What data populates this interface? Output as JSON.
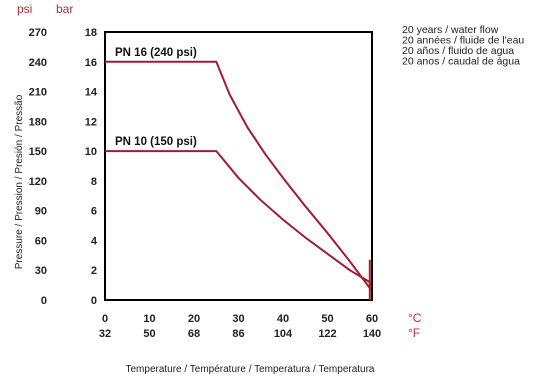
{
  "chart_data": {
    "type": "line",
    "units": {
      "y_primary": "psi",
      "y_secondary": "bar",
      "x_primary": "°C",
      "x_secondary": "°F"
    },
    "ylabel": "Pressure / Pression / Presión / Pressão",
    "xlabel": "Temperature / Température / Temperatura / Temperatura",
    "notes": [
      "20 years / water flow",
      "20 années / fluide de l'eau",
      "20 años / fluido de agua",
      "20 anos / caudal de água"
    ],
    "xlim": [
      0,
      60
    ],
    "ylim": [
      0,
      18
    ],
    "x_ticks": [
      {
        "c": 0,
        "c_label": "0",
        "f_label": "32"
      },
      {
        "c": 10,
        "c_label": "10",
        "f_label": "50"
      },
      {
        "c": 20,
        "c_label": "20",
        "f_label": "68"
      },
      {
        "c": 30,
        "c_label": "30",
        "f_label": "86"
      },
      {
        "c": 40,
        "c_label": "40",
        "f_label": "104"
      },
      {
        "c": 50,
        "c_label": "50",
        "f_label": "122"
      },
      {
        "c": 60,
        "c_label": "60",
        "f_label": "140"
      }
    ],
    "y_ticks": [
      {
        "bar": 0,
        "bar_label": "0",
        "psi_label": "0"
      },
      {
        "bar": 2,
        "bar_label": "2",
        "psi_label": "30"
      },
      {
        "bar": 4,
        "bar_label": "4",
        "psi_label": "60"
      },
      {
        "bar": 6,
        "bar_label": "6",
        "psi_label": "90"
      },
      {
        "bar": 8,
        "bar_label": "8",
        "psi_label": "120"
      },
      {
        "bar": 10,
        "bar_label": "10",
        "psi_label": "150"
      },
      {
        "bar": 12,
        "bar_label": "12",
        "psi_label": "180"
      },
      {
        "bar": 14,
        "bar_label": "14",
        "psi_label": "210"
      },
      {
        "bar": 16,
        "bar_label": "16",
        "psi_label": "240"
      },
      {
        "bar": 18,
        "bar_label": "18",
        "psi_label": "270"
      }
    ],
    "series": [
      {
        "name": "PN 16 (240 psi)",
        "color": "#a01c35",
        "points": [
          [
            0,
            16
          ],
          [
            25,
            16
          ],
          [
            28,
            13.8
          ],
          [
            32,
            11.6
          ],
          [
            36,
            9.8
          ],
          [
            40,
            8.2
          ],
          [
            45,
            6.3
          ],
          [
            50,
            4.5
          ],
          [
            55,
            2.6
          ],
          [
            59.5,
            0.8
          ],
          [
            59.5,
            2.7
          ]
        ]
      },
      {
        "name": "PN 10 (150 psi)",
        "color": "#a01c35",
        "points": [
          [
            0,
            10
          ],
          [
            25,
            10
          ],
          [
            30,
            8.2
          ],
          [
            35,
            6.7
          ],
          [
            40,
            5.4
          ],
          [
            45,
            4.2
          ],
          [
            50,
            3.1
          ],
          [
            55,
            2.0
          ],
          [
            59.5,
            1.2
          ],
          [
            59.5,
            0
          ]
        ]
      }
    ]
  }
}
